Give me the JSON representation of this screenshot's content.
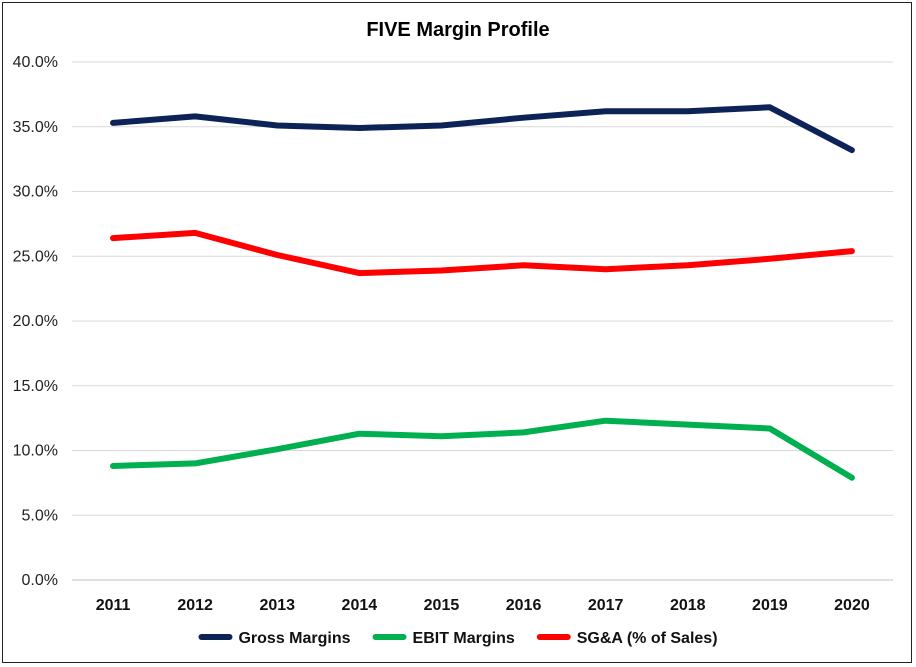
{
  "chart_data": {
    "type": "line",
    "title": "FIVE Margin Profile",
    "xlabel": "",
    "ylabel": "",
    "categories": [
      "2011",
      "2012",
      "2013",
      "2014",
      "2015",
      "2016",
      "2017",
      "2018",
      "2019",
      "2020"
    ],
    "ylim": [
      0,
      40
    ],
    "y_ticks": [
      0,
      5,
      10,
      15,
      20,
      25,
      30,
      35,
      40
    ],
    "y_tick_labels": [
      "0.0%",
      "5.0%",
      "10.0%",
      "15.0%",
      "20.0%",
      "25.0%",
      "30.0%",
      "35.0%",
      "40.0%"
    ],
    "grid": true,
    "legend_position": "bottom",
    "series": [
      {
        "name": "Gross Margins",
        "color": "#0d2358",
        "values": [
          35.3,
          35.8,
          35.1,
          34.9,
          35.1,
          35.7,
          36.2,
          36.2,
          36.5,
          33.2
        ]
      },
      {
        "name": "EBIT Margins",
        "color": "#00b050",
        "values": [
          8.8,
          9.0,
          10.1,
          11.3,
          11.1,
          11.4,
          12.3,
          12.0,
          11.7,
          7.9
        ]
      },
      {
        "name": "SG&A (% of Sales)",
        "color": "#ff0000",
        "values": [
          26.4,
          26.8,
          25.1,
          23.7,
          23.9,
          24.3,
          24.0,
          24.3,
          24.8,
          25.4
        ]
      }
    ]
  }
}
